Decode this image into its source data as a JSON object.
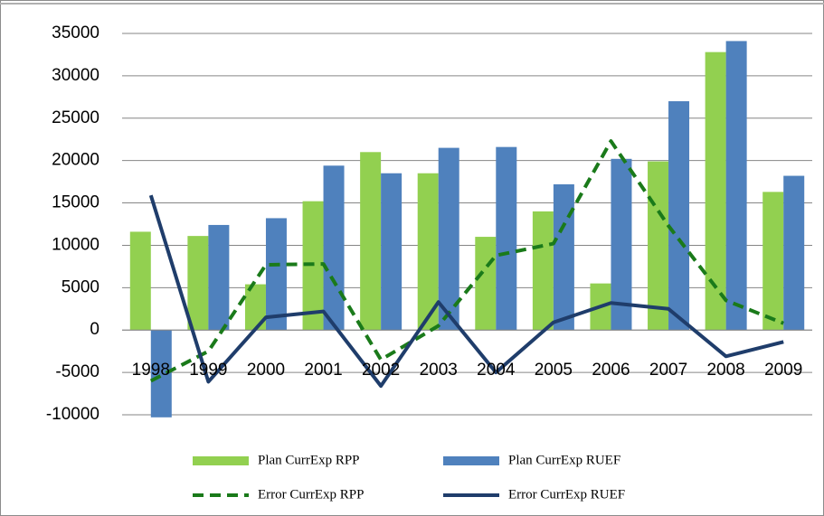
{
  "chart_data": {
    "type": "bar",
    "categories": [
      "1998",
      "1999",
      "2000",
      "2001",
      "2002",
      "2003",
      "2004",
      "2005",
      "2006",
      "2007",
      "2008",
      "2009"
    ],
    "series": [
      {
        "name": "Plan CurrExp RPP",
        "type": "bar",
        "color": "#92d050",
        "values": [
          11600,
          11100,
          5400,
          15200,
          21000,
          18500,
          11000,
          14000,
          5500,
          19900,
          32800,
          16300
        ]
      },
      {
        "name": "Plan CurrExp RUEF",
        "type": "bar",
        "color": "#4f81bd",
        "values": [
          -10300,
          12400,
          13200,
          19400,
          18500,
          21500,
          21600,
          17200,
          20200,
          27000,
          34100,
          18200
        ]
      },
      {
        "name": "Error CurrExp RPP",
        "type": "line",
        "dashed": true,
        "color": "#1a7a1a",
        "values": [
          -6000,
          -2500,
          7700,
          7800,
          -3500,
          500,
          8800,
          10200,
          22300,
          12300,
          3500,
          800
        ]
      },
      {
        "name": "Error CurrExp RUEF",
        "type": "line",
        "dashed": false,
        "color": "#1f3d6b",
        "values": [
          15900,
          -6100,
          1500,
          2200,
          -6600,
          3300,
          -5000,
          900,
          3200,
          2500,
          -3100,
          -1400
        ]
      }
    ],
    "ylim": [
      -10000,
      35000
    ],
    "yticks": [
      -10000,
      -5000,
      0,
      5000,
      10000,
      15000,
      20000,
      25000,
      30000,
      35000
    ],
    "grid": true
  }
}
